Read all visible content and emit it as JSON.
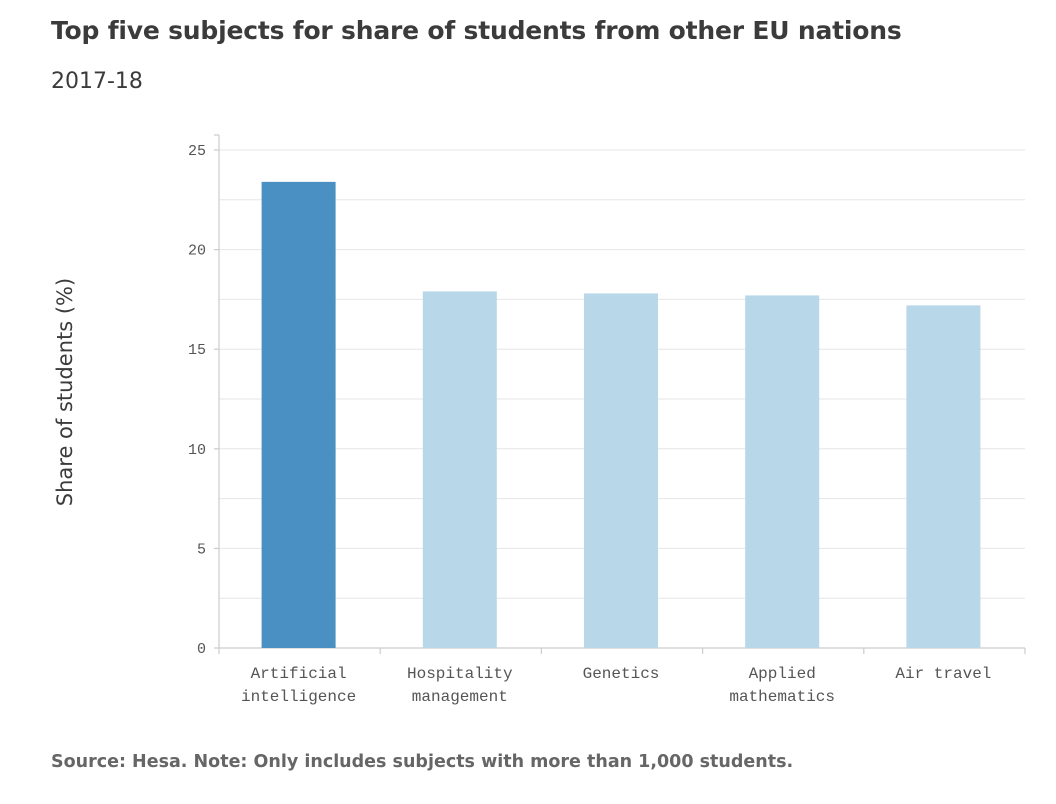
{
  "chart_data": {
    "type": "bar",
    "title": "Top five subjects for share of students from other EU nations",
    "subtitle": "2017-18",
    "xlabel": "",
    "ylabel": "Share of students (%)",
    "ylim": [
      0,
      25
    ],
    "yticks": [
      "0",
      "5",
      "10",
      "15",
      "20",
      "25"
    ],
    "grid": true,
    "categories": [
      [
        "Artificial",
        "intelligence"
      ],
      [
        "Hospitality",
        "management"
      ],
      [
        "Genetics"
      ],
      [
        "Applied",
        "mathematics"
      ],
      [
        "Air travel"
      ]
    ],
    "values": [
      23.4,
      17.9,
      17.8,
      17.7,
      17.2
    ],
    "highlight_index": 0,
    "colors": {
      "highlight": "#4a90c2",
      "bar": "#b8d7e8",
      "grid": "#e6e6e6",
      "axis": "#cccccc"
    },
    "source": "Source: Hesa. Note: Only includes subjects with more than 1,000 students."
  }
}
